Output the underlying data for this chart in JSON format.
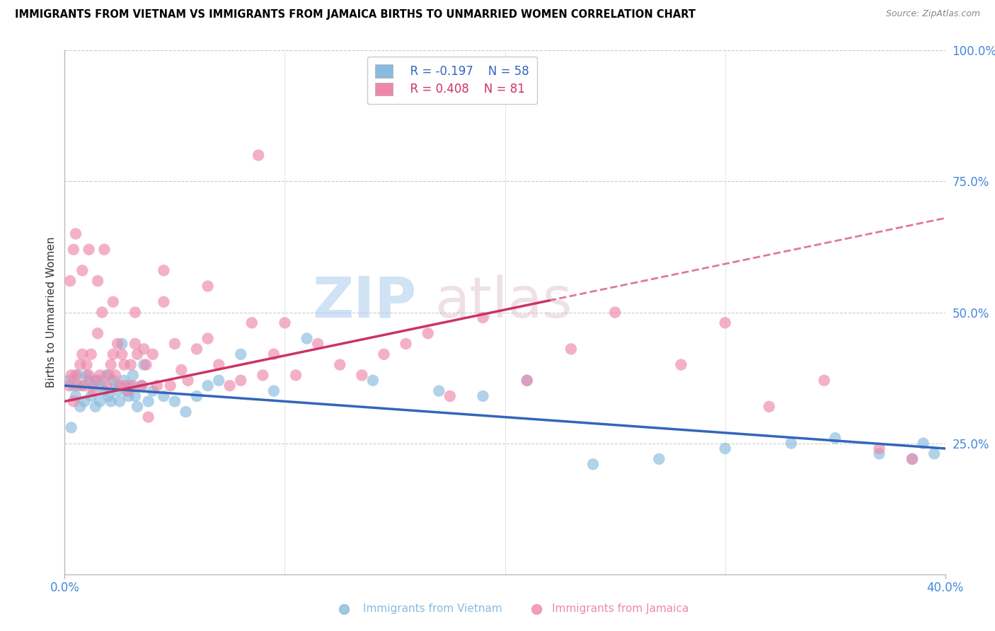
{
  "title": "IMMIGRANTS FROM VIETNAM VS IMMIGRANTS FROM JAMAICA BIRTHS TO UNMARRIED WOMEN CORRELATION CHART",
  "source": "Source: ZipAtlas.com",
  "ylabel": "Births to Unmarried Women",
  "xlim": [
    0.0,
    40.0
  ],
  "ylim": [
    0.0,
    100.0
  ],
  "yticks_right": [
    25.0,
    50.0,
    75.0,
    100.0
  ],
  "xticks": [
    0.0,
    40.0
  ],
  "legend_r_vietnam": "R = -0.197",
  "legend_n_vietnam": "N = 58",
  "legend_r_jamaica": "R = 0.408",
  "legend_n_jamaica": "N = 81",
  "vietnam_color": "#88bbdd",
  "jamaica_color": "#ee88aa",
  "vietnam_line_color": "#3366bb",
  "jamaica_line_color": "#cc3366",
  "axis_label_color": "#4488dd",
  "grid_color": "#cccccc",
  "vn_line_x0": 0.0,
  "vn_line_y0": 36.0,
  "vn_line_x1": 40.0,
  "vn_line_y1": 24.0,
  "jm_line_x0": 0.0,
  "jm_line_y0": 33.0,
  "jm_line_x1": 40.0,
  "jm_line_y1": 68.0,
  "jm_solid_end": 22.0,
  "vietnam_x": [
    0.2,
    0.3,
    0.4,
    0.5,
    0.6,
    0.7,
    0.8,
    0.9,
    1.0,
    1.1,
    1.2,
    1.3,
    1.4,
    1.5,
    1.6,
    1.7,
    1.8,
    1.9,
    2.0,
    2.1,
    2.2,
    2.3,
    2.4,
    2.5,
    2.6,
    2.7,
    2.8,
    2.9,
    3.0,
    3.1,
    3.2,
    3.3,
    3.5,
    3.6,
    3.8,
    4.0,
    4.5,
    5.0,
    5.5,
    6.0,
    6.5,
    7.0,
    8.0,
    9.5,
    11.0,
    14.0,
    17.0,
    19.0,
    21.0,
    24.0,
    27.0,
    30.0,
    33.0,
    35.0,
    37.0,
    38.5,
    39.0,
    39.5
  ],
  "vietnam_y": [
    37,
    28,
    36,
    34,
    38,
    32,
    36,
    33,
    38,
    37,
    34,
    36,
    32,
    37,
    33,
    36,
    35,
    38,
    34,
    33,
    37,
    36,
    35,
    33,
    44,
    37,
    35,
    34,
    36,
    38,
    34,
    32,
    36,
    40,
    33,
    35,
    34,
    33,
    31,
    34,
    36,
    37,
    42,
    35,
    45,
    37,
    35,
    34,
    37,
    21,
    22,
    24,
    25,
    26,
    23,
    22,
    25,
    23
  ],
  "jamaica_x": [
    0.2,
    0.3,
    0.4,
    0.5,
    0.6,
    0.7,
    0.8,
    0.9,
    1.0,
    1.1,
    1.2,
    1.3,
    1.4,
    1.5,
    1.6,
    1.7,
    1.8,
    1.9,
    2.0,
    2.1,
    2.2,
    2.3,
    2.4,
    2.5,
    2.6,
    2.7,
    2.8,
    2.9,
    3.0,
    3.1,
    3.2,
    3.3,
    3.5,
    3.6,
    3.7,
    3.8,
    4.0,
    4.2,
    4.5,
    4.8,
    5.0,
    5.3,
    5.6,
    6.0,
    6.5,
    7.0,
    7.5,
    8.0,
    8.5,
    9.0,
    9.5,
    10.0,
    10.5,
    11.5,
    12.5,
    13.5,
    14.5,
    15.5,
    16.5,
    17.5,
    19.0,
    21.0,
    23.0,
    25.0,
    28.0,
    30.0,
    32.0,
    34.5,
    37.0,
    38.5,
    0.25,
    0.4,
    0.5,
    0.8,
    1.1,
    1.5,
    2.2,
    3.2,
    4.5,
    6.5,
    8.8
  ],
  "jamaica_y": [
    36,
    38,
    33,
    38,
    36,
    40,
    42,
    36,
    40,
    38,
    42,
    35,
    37,
    46,
    38,
    50,
    62,
    36,
    38,
    40,
    42,
    38,
    44,
    36,
    42,
    40,
    36,
    35,
    40,
    36,
    44,
    42,
    36,
    43,
    40,
    30,
    42,
    36,
    52,
    36,
    44,
    39,
    37,
    43,
    45,
    40,
    36,
    37,
    48,
    38,
    42,
    48,
    38,
    44,
    40,
    38,
    42,
    44,
    46,
    34,
    49,
    37,
    43,
    50,
    40,
    48,
    32,
    37,
    24,
    22,
    56,
    62,
    65,
    58,
    62,
    56,
    52,
    50,
    58,
    55,
    80
  ]
}
